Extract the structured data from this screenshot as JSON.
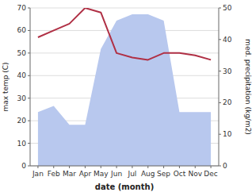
{
  "chart_data": {
    "type": "line",
    "xlabel": "date (month)",
    "ylabel": "max temp (C)",
    "y2label": "med. precipitation (kg/m2)",
    "categories": [
      "Jan",
      "Feb",
      "Mar",
      "Apr",
      "May",
      "Jun",
      "Jul",
      "Aug",
      "Sep",
      "Oct",
      "Nov",
      "Dec"
    ],
    "series": [
      {
        "type": "area",
        "axis": "y2",
        "color": "#b8c8ee",
        "values": [
          17,
          19,
          13,
          13,
          37,
          46,
          48,
          48,
          46,
          17,
          17,
          17
        ]
      },
      {
        "type": "line",
        "color": "#b03045",
        "values": [
          57,
          60,
          63,
          70,
          68,
          50,
          48,
          47,
          50,
          50,
          49,
          47
        ]
      }
    ],
    "ylim": [
      0,
      70
    ],
    "yticks": [
      0,
      10,
      20,
      30,
      40,
      50,
      60,
      70
    ],
    "y2lim": [
      0,
      50
    ],
    "y2ticks": [
      0,
      10,
      20,
      30,
      40,
      50
    ],
    "grid": true
  }
}
